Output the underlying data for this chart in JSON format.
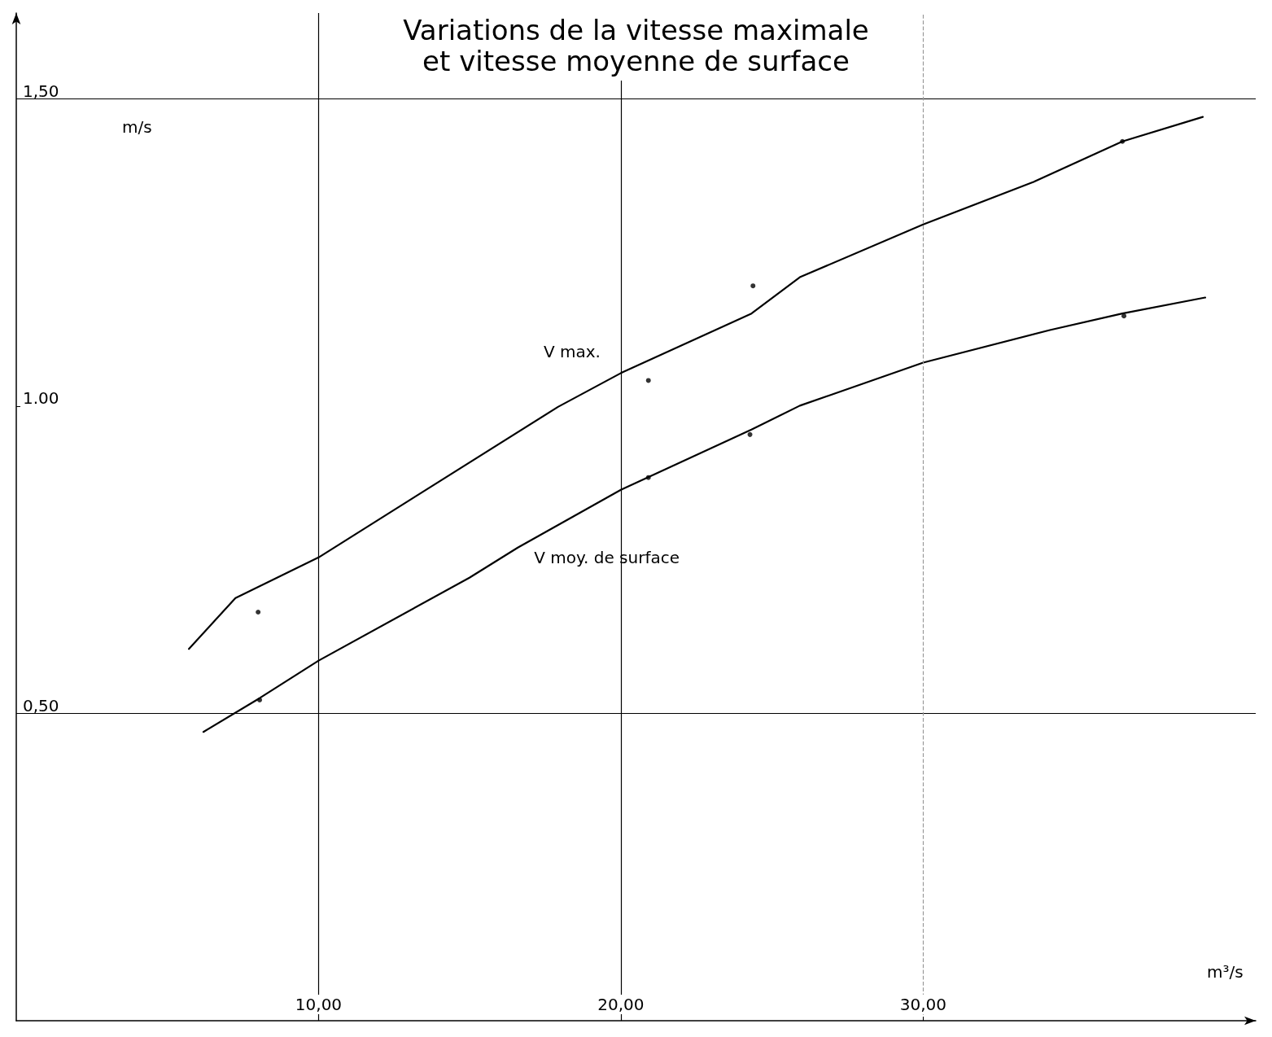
{
  "chart_data": {
    "type": "line",
    "title": "Variations de la vitesse maximale\net vitesse moyenne de surface",
    "xlabel": "m³/s",
    "ylabel": "m/s",
    "xlim": [
      0,
      41
    ],
    "ylim": [
      0,
      1.64
    ],
    "xticks": [
      {
        "value": 10,
        "label": "10,00"
      },
      {
        "value": 20,
        "label": "20,00"
      },
      {
        "value": 30,
        "label": "30,00"
      }
    ],
    "yticks": [
      {
        "value": 0.5,
        "label": "0,50"
      },
      {
        "value": 1.0,
        "label": "1.00"
      },
      {
        "value": 1.5,
        "label": "1,50"
      }
    ],
    "grid": false,
    "legend": false,
    "marker": "none",
    "line_style": "solid",
    "ref_lines": [
      {
        "axis": "y",
        "value": 0.5,
        "color": "#000000",
        "line_style": "solid"
      },
      {
        "axis": "y",
        "value": 1.5,
        "color": "#000000",
        "line_style": "solid"
      },
      {
        "axis": "x",
        "value": 10,
        "color": "#000000",
        "line_style": "solid"
      },
      {
        "axis": "x",
        "value": 20,
        "color": "#000000",
        "line_style": "solid"
      },
      {
        "axis": "x",
        "value": 30,
        "color": "#999999",
        "line_style": "dashed"
      }
    ],
    "series": [
      {
        "name": "V max.",
        "color": "#000000",
        "x": [
          5.71,
          7.25,
          10.0,
          17.92,
          20.0,
          24.32,
          25.92,
          30.0,
          33.65,
          36.59,
          39.25
        ],
        "values": [
          0.605,
          0.688,
          0.754,
          0.999,
          1.054,
          1.151,
          1.21,
          1.296,
          1.365,
          1.431,
          1.471
        ]
      },
      {
        "name": "V moy. de surface",
        "color": "#000000",
        "x": [
          6.19,
          8.05,
          10.0,
          14.99,
          16.59,
          20.0,
          24.32,
          25.92,
          30.0,
          34.19,
          36.59,
          39.33
        ],
        "values": [
          0.47,
          0.525,
          0.586,
          0.721,
          0.77,
          0.864,
          0.962,
          1.001,
          1.071,
          1.124,
          1.151,
          1.177
        ]
      },
      {
        "type": "scatter",
        "marker": "circle",
        "color": "#000000",
        "x": [
          8.0,
          8.05,
          20.91,
          20.91,
          24.37,
          24.27,
          36.59,
          36.64
        ],
        "values": [
          0.665,
          0.522,
          1.042,
          0.884,
          1.196,
          0.954,
          1.431,
          1.147
        ]
      }
    ]
  }
}
